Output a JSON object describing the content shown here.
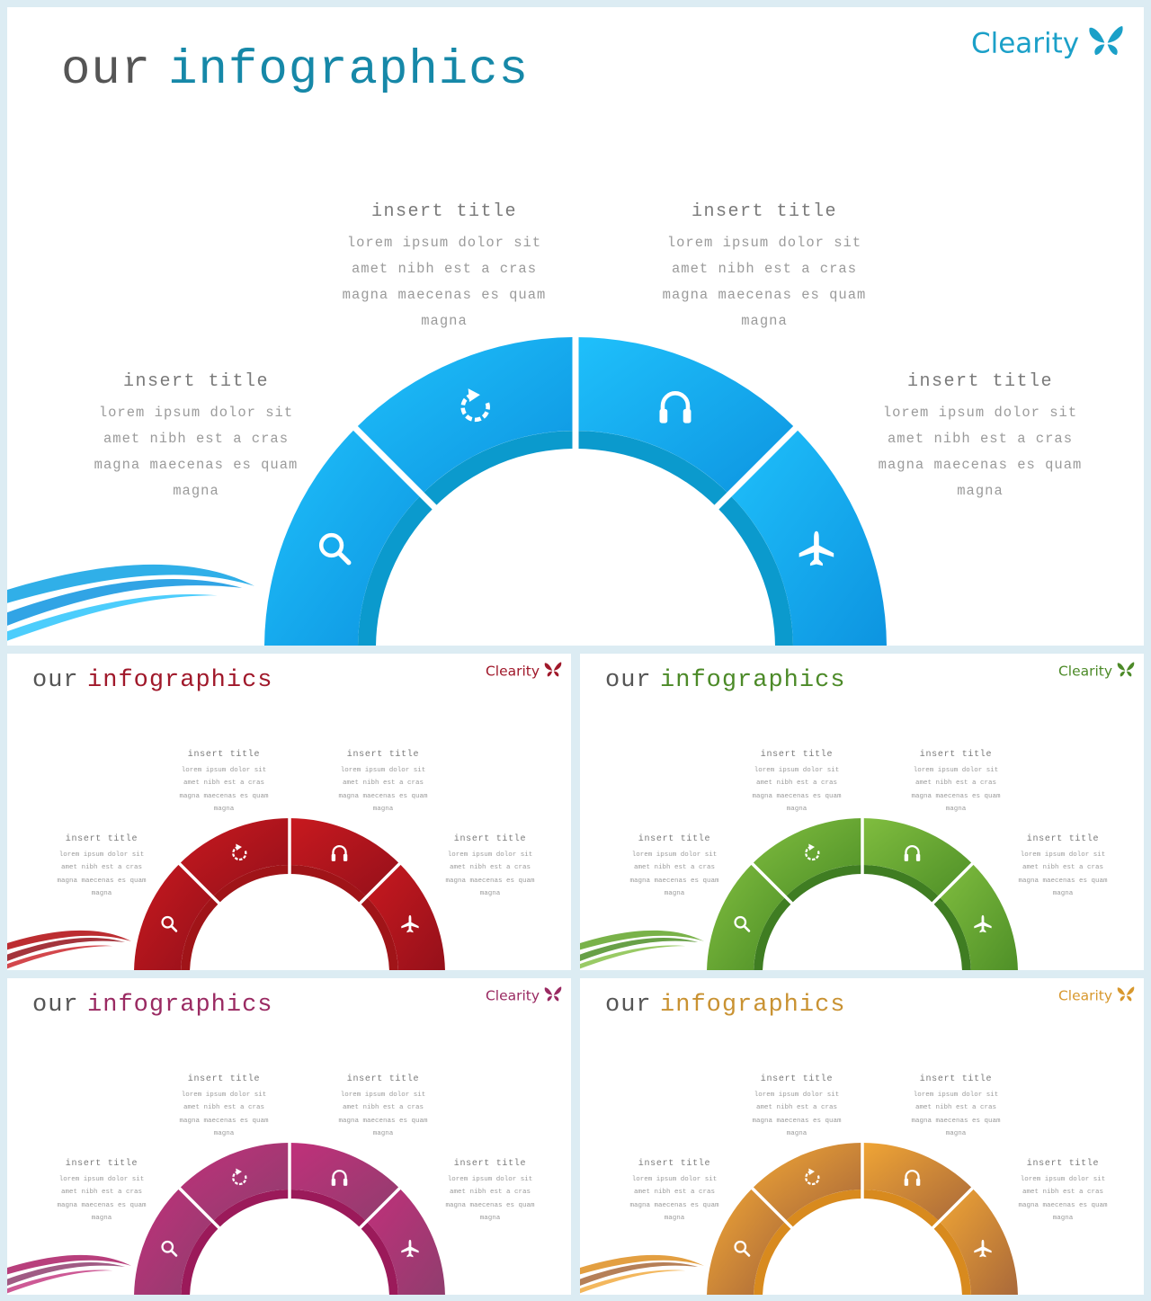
{
  "slides": [
    {
      "id": "slide-main",
      "title_word1": "our",
      "title_word2": "infographics",
      "brand": "Clearity",
      "colors": {
        "accent": "#1aa6e6",
        "light": "#1fc0fb",
        "dark": "#0d94e0",
        "inner": "#0b9acd",
        "title": "#1688a8",
        "brand": "#1ba0c8"
      },
      "blocks": [
        {
          "title": "insert title",
          "lines": [
            "lorem ipsum dolor sit",
            "amet nibh est a cras",
            "magna maecenas es quam",
            "magna"
          ]
        },
        {
          "title": "insert title",
          "lines": [
            "lorem ipsum dolor sit",
            "amet nibh est a cras",
            "magna maecenas es quam",
            "magna"
          ]
        },
        {
          "title": "insert title",
          "lines": [
            "lorem ipsum dolor sit",
            "amet nibh est a cras",
            "magna maecenas es quam",
            "magna"
          ]
        },
        {
          "title": "insert title",
          "lines": [
            "lorem ipsum dolor sit",
            "amet nibh est a cras",
            "magna maecenas es quam",
            "magna"
          ]
        }
      ],
      "icons": [
        "search-icon",
        "refresh-icon",
        "headphones-icon",
        "airplane-icon"
      ]
    },
    {
      "id": "slide-red",
      "title_word1": "our",
      "title_word2": "infographics",
      "brand": "Clearity",
      "colors": {
        "accent": "#b5161b",
        "light": "#c8191f",
        "dark": "#94101a",
        "inner": "#a01418",
        "title": "#a0182a",
        "brand": "#a0182a"
      },
      "blocks": [
        {
          "title": "insert title",
          "lines": [
            "lorem ipsum dolor sit",
            "amet nibh est a cras",
            "magna maecenas es quam",
            "magna"
          ]
        },
        {
          "title": "insert title",
          "lines": [
            "lorem ipsum dolor sit",
            "amet nibh est a cras",
            "magna maecenas es quam",
            "magna"
          ]
        },
        {
          "title": "insert title",
          "lines": [
            "lorem ipsum dolor sit",
            "amet nibh est a cras",
            "magna maecenas es quam",
            "magna"
          ]
        },
        {
          "title": "insert title",
          "lines": [
            "lorem ipsum dolor sit",
            "amet nibh est a cras",
            "magna maecenas es quam",
            "magna"
          ]
        }
      ],
      "icons": [
        "search-icon",
        "refresh-icon",
        "headphones-icon",
        "airplane-icon"
      ]
    },
    {
      "id": "slide-green",
      "title_word1": "our",
      "title_word2": "infographics",
      "brand": "Clearity",
      "colors": {
        "accent": "#6aaa35",
        "light": "#80bd3f",
        "dark": "#4e8f27",
        "inner": "#3f7d22",
        "title": "#4c8a28",
        "brand": "#4c8a28"
      },
      "blocks": [
        {
          "title": "insert title",
          "lines": [
            "lorem ipsum dolor sit",
            "amet nibh est a cras",
            "magna maecenas es quam",
            "magna"
          ]
        },
        {
          "title": "insert title",
          "lines": [
            "lorem ipsum dolor sit",
            "amet nibh est a cras",
            "magna maecenas es quam",
            "magna"
          ]
        },
        {
          "title": "insert title",
          "lines": [
            "lorem ipsum dolor sit",
            "amet nibh est a cras",
            "magna maecenas es quam",
            "magna"
          ]
        },
        {
          "title": "insert title",
          "lines": [
            "lorem ipsum dolor sit",
            "amet nibh est a cras",
            "magna maecenas es quam",
            "magna"
          ]
        }
      ],
      "icons": [
        "search-icon",
        "refresh-icon",
        "headphones-icon",
        "airplane-icon"
      ]
    },
    {
      "id": "slide-magenta",
      "title_word1": "our",
      "title_word2": "infographics",
      "brand": "Clearity",
      "colors": {
        "accent": "#b02a6e",
        "light": "#c0307a",
        "dark": "#8f3e6e",
        "inner": "#9b1a5a",
        "title": "#9a2a62",
        "brand": "#9a2a62"
      },
      "blocks": [
        {
          "title": "insert title",
          "lines": [
            "lorem ipsum dolor sit",
            "amet nibh est a cras",
            "magna maecenas es quam",
            "magna"
          ]
        },
        {
          "title": "insert title",
          "lines": [
            "lorem ipsum dolor sit",
            "amet nibh est a cras",
            "magna maecenas es quam",
            "magna"
          ]
        },
        {
          "title": "insert title",
          "lines": [
            "lorem ipsum dolor sit",
            "amet nibh est a cras",
            "magna maecenas es quam",
            "magna"
          ]
        },
        {
          "title": "insert title",
          "lines": [
            "lorem ipsum dolor sit",
            "amet nibh est a cras",
            "magna maecenas es quam",
            "magna"
          ]
        }
      ],
      "icons": [
        "search-icon",
        "refresh-icon",
        "headphones-icon",
        "airplane-icon"
      ]
    },
    {
      "id": "slide-gold",
      "title_word1": "our",
      "title_word2": "infographics",
      "brand": "Clearity",
      "colors": {
        "accent": "#e0952c",
        "light": "#f0a535",
        "dark": "#a8683a",
        "inner": "#d88a1e",
        "title": "#c99232",
        "brand": "#d8982e"
      },
      "blocks": [
        {
          "title": "insert title",
          "lines": [
            "lorem ipsum dolor sit",
            "amet nibh est a cras",
            "magna maecenas es quam",
            "magna"
          ]
        },
        {
          "title": "insert title",
          "lines": [
            "lorem ipsum dolor sit",
            "amet nibh est a cras",
            "magna maecenas es quam",
            "magna"
          ]
        },
        {
          "title": "insert title",
          "lines": [
            "lorem ipsum dolor sit",
            "amet nibh est a cras",
            "magna maecenas es quam",
            "magna"
          ]
        },
        {
          "title": "insert title",
          "lines": [
            "lorem ipsum dolor sit",
            "amet nibh est a cras",
            "magna maecenas es quam",
            "magna"
          ]
        }
      ],
      "icons": [
        "search-icon",
        "refresh-icon",
        "headphones-icon",
        "airplane-icon"
      ]
    }
  ]
}
